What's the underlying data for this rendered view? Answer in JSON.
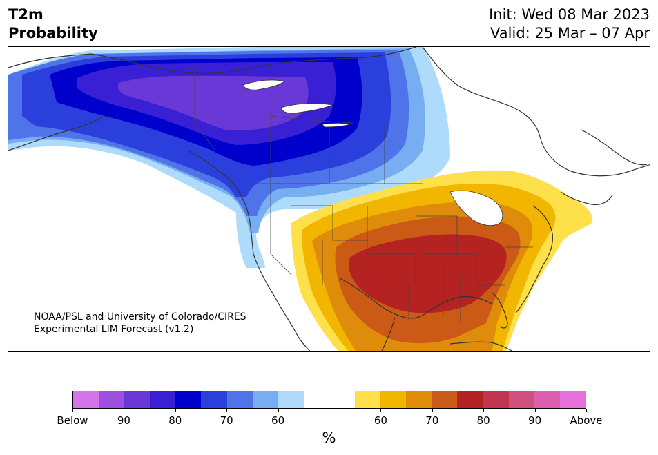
{
  "title": {
    "left": "T2m\nProbability",
    "init": "Init: Wed 08 Mar 2023",
    "valid": "Valid: 25 Mar – 07 Apr"
  },
  "credit": {
    "line1": "NOAA/PSL and University of Colorado/CIRES",
    "line2": "Experimental LIM Forecast (v1.2)"
  },
  "colorbar": {
    "unit": "%",
    "ticks": [
      "Below",
      "90",
      "80",
      "70",
      "60",
      "60",
      "70",
      "80",
      "90",
      "Above"
    ],
    "colors": {
      "below": [
        "#d574ea",
        "#9c4fe0",
        "#6a38d6",
        "#3a20d4",
        "#0000cc",
        "#2a3fdc",
        "#4f73e8",
        "#77aef2",
        "#aedafb"
      ],
      "neutral": "#ffffff",
      "above": [
        "#fde04a",
        "#f3b600",
        "#e08c0b",
        "#cc5a17",
        "#b52222",
        "#c23550",
        "#d05080",
        "#dc60ae",
        "#e870dc"
      ]
    }
  },
  "map": {
    "icons": [
      "map-of-north-america"
    ]
  }
}
